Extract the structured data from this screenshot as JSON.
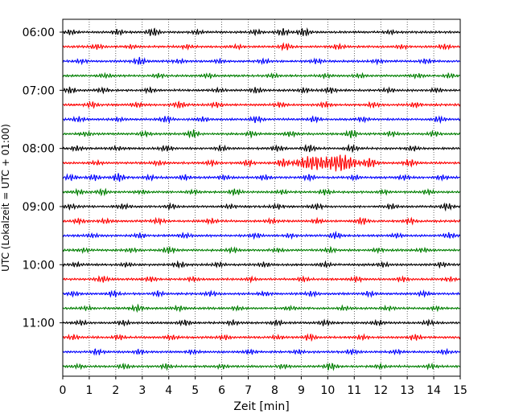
{
  "chart_data": {
    "type": "line",
    "title": "",
    "xlabel": "Zeit  [min]",
    "ylabel": "UTC (Lokalzeit = UTC + 01:00)",
    "xlim": [
      0,
      15
    ],
    "x_ticks": [
      "0",
      "1",
      "2",
      "3",
      "4",
      "5",
      "6",
      "7",
      "8",
      "9",
      "10",
      "11",
      "12",
      "13",
      "14",
      "15"
    ],
    "y_ticks": [
      "06:00",
      "07:00",
      "08:00",
      "09:00",
      "10:00",
      "11:00"
    ],
    "grid": "vertical dotted",
    "line_interval_minutes": 15,
    "start_time": "06:00",
    "trace_colors": [
      "#000000",
      "#ff0000",
      "#0000ff",
      "#007f00"
    ],
    "series": [
      {
        "start": "06:00",
        "color": "#000000",
        "bursts": [
          [
            0.3,
            0.5
          ],
          [
            2.1,
            0.6
          ],
          [
            3.4,
            0.9
          ],
          [
            5.1,
            0.4
          ],
          [
            7.3,
            0.5
          ],
          [
            8.3,
            0.8
          ],
          [
            9.1,
            0.9
          ],
          [
            12.4,
            0.4
          ]
        ]
      },
      {
        "start": "06:15",
        "color": "#ff0000",
        "bursts": [
          [
            1.3,
            0.5
          ],
          [
            2.6,
            0.4
          ],
          [
            4.7,
            0.4
          ],
          [
            6.6,
            0.4
          ],
          [
            8.4,
            0.7
          ],
          [
            10.4,
            0.5
          ],
          [
            12.8,
            0.4
          ],
          [
            14.4,
            0.5
          ]
        ]
      },
      {
        "start": "06:30",
        "color": "#0000ff",
        "bursts": [
          [
            0.7,
            0.4
          ],
          [
            2.9,
            0.8
          ],
          [
            4.4,
            0.4
          ],
          [
            5.9,
            0.4
          ],
          [
            7.6,
            0.5
          ],
          [
            9.6,
            0.5
          ],
          [
            11.9,
            0.4
          ],
          [
            13.7,
            0.5
          ]
        ]
      },
      {
        "start": "06:45",
        "color": "#007f00",
        "bursts": [
          [
            1.6,
            0.4
          ],
          [
            3.6,
            0.4
          ],
          [
            5.5,
            0.4
          ],
          [
            7.9,
            0.4
          ],
          [
            9.9,
            0.4
          ],
          [
            11.2,
            0.4
          ],
          [
            13.4,
            0.4
          ],
          [
            14.6,
            0.4
          ]
        ]
      },
      {
        "start": "07:00",
        "color": "#000000",
        "bursts": [
          [
            0.3,
            0.6
          ],
          [
            1.5,
            0.5
          ],
          [
            3.3,
            0.5
          ],
          [
            5.9,
            0.4
          ],
          [
            7.3,
            0.6
          ],
          [
            9.1,
            0.5
          ],
          [
            10.1,
            0.6
          ],
          [
            12.3,
            0.5
          ],
          [
            14.1,
            0.4
          ]
        ]
      },
      {
        "start": "07:15",
        "color": "#ff0000",
        "bursts": [
          [
            1.1,
            0.6
          ],
          [
            2.8,
            0.5
          ],
          [
            4.4,
            0.7
          ],
          [
            5.8,
            0.5
          ],
          [
            8.2,
            0.5
          ],
          [
            9.9,
            0.6
          ],
          [
            11.7,
            0.5
          ],
          [
            13.3,
            0.5
          ]
        ]
      },
      {
        "start": "07:30",
        "color": "#0000ff",
        "bursts": [
          [
            0.6,
            0.5
          ],
          [
            2.1,
            0.4
          ],
          [
            3.9,
            0.7
          ],
          [
            5.3,
            0.5
          ],
          [
            7.3,
            0.7
          ],
          [
            9.5,
            0.6
          ],
          [
            11.3,
            0.5
          ],
          [
            14.2,
            0.6
          ]
        ]
      },
      {
        "start": "07:45",
        "color": "#007f00",
        "bursts": [
          [
            0.9,
            0.4
          ],
          [
            3.1,
            0.5
          ],
          [
            4.9,
            0.9
          ],
          [
            7.1,
            0.6
          ],
          [
            8.6,
            0.5
          ],
          [
            10.9,
            0.9
          ],
          [
            12.4,
            0.5
          ],
          [
            14.0,
            0.5
          ]
        ]
      },
      {
        "start": "08:00",
        "color": "#000000",
        "bursts": [
          [
            0.5,
            0.5
          ],
          [
            2.0,
            0.4
          ],
          [
            3.9,
            0.6
          ],
          [
            6.0,
            0.5
          ],
          [
            8.1,
            0.6
          ],
          [
            9.3,
            0.8
          ],
          [
            10.9,
            0.7
          ],
          [
            13.2,
            0.5
          ]
        ]
      },
      {
        "start": "08:15",
        "color": "#ff0000",
        "bursts": [
          [
            1.3,
            0.4
          ],
          [
            3.6,
            0.5
          ],
          [
            5.6,
            0.5
          ],
          [
            7.0,
            0.6
          ],
          [
            8.3,
            0.9
          ],
          [
            9.4,
            1.6
          ],
          [
            10.5,
            2.0
          ],
          [
            11.6,
            1.1
          ],
          [
            13.1,
            0.8
          ]
        ]
      },
      {
        "start": "08:30",
        "color": "#0000ff",
        "bursts": [
          [
            0.3,
            0.6
          ],
          [
            1.2,
            0.6
          ],
          [
            2.1,
            0.9
          ],
          [
            3.3,
            0.5
          ],
          [
            4.6,
            0.5
          ],
          [
            6.1,
            0.5
          ],
          [
            7.6,
            0.5
          ],
          [
            9.3,
            0.6
          ],
          [
            11.0,
            0.5
          ],
          [
            12.9,
            0.5
          ],
          [
            14.3,
            0.5
          ]
        ]
      },
      {
        "start": "08:45",
        "color": "#007f00",
        "bursts": [
          [
            0.6,
            0.5
          ],
          [
            1.5,
            0.6
          ],
          [
            3.0,
            0.4
          ],
          [
            4.9,
            0.4
          ],
          [
            6.5,
            0.7
          ],
          [
            8.3,
            0.4
          ],
          [
            9.9,
            0.6
          ],
          [
            12.1,
            0.4
          ],
          [
            13.8,
            0.5
          ]
        ]
      },
      {
        "start": "09:00",
        "color": "#000000",
        "bursts": [
          [
            0.3,
            0.5
          ],
          [
            2.3,
            0.5
          ],
          [
            4.1,
            0.5
          ],
          [
            6.3,
            0.4
          ],
          [
            8.1,
            0.5
          ],
          [
            9.6,
            0.6
          ],
          [
            12.4,
            0.5
          ],
          [
            14.5,
            0.7
          ]
        ]
      },
      {
        "start": "09:15",
        "color": "#ff0000",
        "bursts": [
          [
            0.6,
            0.5
          ],
          [
            1.6,
            0.5
          ],
          [
            3.6,
            0.6
          ],
          [
            5.6,
            0.5
          ],
          [
            7.9,
            0.5
          ],
          [
            9.6,
            0.5
          ],
          [
            11.3,
            0.8
          ],
          [
            13.1,
            0.6
          ]
        ]
      },
      {
        "start": "09:30",
        "color": "#0000ff",
        "bursts": [
          [
            1.1,
            0.4
          ],
          [
            2.9,
            0.5
          ],
          [
            4.6,
            0.5
          ],
          [
            7.3,
            0.5
          ],
          [
            8.6,
            0.4
          ],
          [
            10.3,
            0.7
          ],
          [
            12.6,
            0.5
          ],
          [
            14.6,
            0.6
          ]
        ]
      },
      {
        "start": "09:45",
        "color": "#007f00",
        "bursts": [
          [
            0.8,
            0.4
          ],
          [
            2.6,
            0.4
          ],
          [
            4.0,
            0.7
          ],
          [
            6.4,
            0.5
          ],
          [
            8.1,
            0.4
          ],
          [
            10.1,
            0.5
          ],
          [
            11.9,
            0.4
          ],
          [
            13.6,
            0.4
          ]
        ]
      },
      {
        "start": "10:00",
        "color": "#000000",
        "bursts": [
          [
            0.5,
            0.4
          ],
          [
            2.4,
            0.4
          ],
          [
            4.4,
            0.6
          ],
          [
            5.9,
            0.5
          ],
          [
            7.6,
            0.5
          ],
          [
            9.9,
            0.5
          ],
          [
            12.1,
            0.5
          ],
          [
            14.3,
            0.5
          ]
        ]
      },
      {
        "start": "10:15",
        "color": "#ff0000",
        "bursts": [
          [
            1.5,
            0.7
          ],
          [
            3.3,
            0.5
          ],
          [
            4.9,
            0.5
          ],
          [
            7.1,
            0.4
          ],
          [
            9.1,
            0.5
          ],
          [
            11.1,
            0.5
          ],
          [
            12.8,
            0.5
          ],
          [
            14.6,
            0.4
          ]
        ]
      },
      {
        "start": "10:30",
        "color": "#0000ff",
        "bursts": [
          [
            0.4,
            0.5
          ],
          [
            1.9,
            0.6
          ],
          [
            3.6,
            0.5
          ],
          [
            5.6,
            0.5
          ],
          [
            7.6,
            0.4
          ],
          [
            9.4,
            0.5
          ],
          [
            11.6,
            0.5
          ],
          [
            13.6,
            0.5
          ]
        ]
      },
      {
        "start": "10:45",
        "color": "#007f00",
        "bursts": [
          [
            0.9,
            0.4
          ],
          [
            2.8,
            0.7
          ],
          [
            4.4,
            0.5
          ],
          [
            6.6,
            0.4
          ],
          [
            8.6,
            0.4
          ],
          [
            10.6,
            0.4
          ],
          [
            12.3,
            0.4
          ],
          [
            14.1,
            0.4
          ]
        ]
      },
      {
        "start": "11:00",
        "color": "#000000",
        "bursts": [
          [
            0.7,
            0.5
          ],
          [
            2.3,
            0.5
          ],
          [
            4.6,
            0.6
          ],
          [
            6.4,
            0.5
          ],
          [
            8.1,
            0.5
          ],
          [
            9.9,
            0.6
          ],
          [
            11.9,
            0.5
          ],
          [
            13.8,
            0.5
          ]
        ]
      },
      {
        "start": "11:15",
        "color": "#ff0000",
        "bursts": [
          [
            0.4,
            0.5
          ],
          [
            2.1,
            0.5
          ],
          [
            4.1,
            0.5
          ],
          [
            6.1,
            0.5
          ],
          [
            8.1,
            0.4
          ],
          [
            9.3,
            0.7
          ],
          [
            11.3,
            0.5
          ],
          [
            13.3,
            0.6
          ]
        ]
      },
      {
        "start": "11:30",
        "color": "#0000ff",
        "bursts": [
          [
            1.3,
            0.6
          ],
          [
            2.9,
            0.5
          ],
          [
            4.9,
            0.4
          ],
          [
            7.1,
            0.5
          ],
          [
            8.9,
            0.4
          ],
          [
            10.9,
            0.5
          ],
          [
            12.6,
            0.4
          ],
          [
            14.4,
            0.5
          ]
        ]
      },
      {
        "start": "11:45",
        "color": "#007f00",
        "bursts": [
          [
            0.6,
            0.4
          ],
          [
            2.3,
            0.5
          ],
          [
            3.9,
            0.5
          ],
          [
            6.0,
            0.4
          ],
          [
            8.3,
            0.4
          ],
          [
            10.1,
            0.8
          ],
          [
            12.0,
            0.4
          ],
          [
            13.9,
            0.5
          ]
        ]
      }
    ]
  }
}
